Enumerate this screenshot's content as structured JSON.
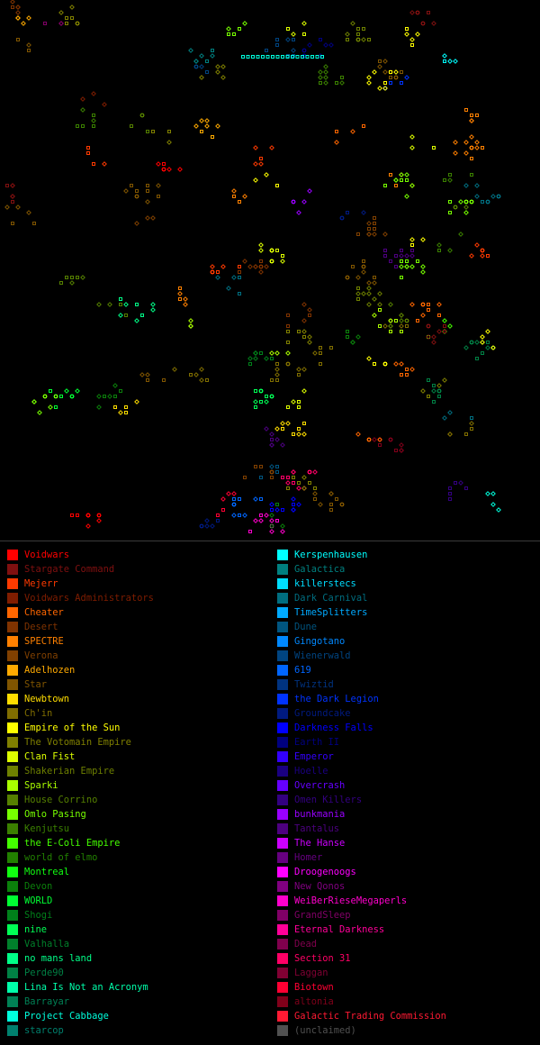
{
  "map": {
    "background": "#000000",
    "seed": 73
  },
  "legend": {
    "left": [
      {
        "name": "Voidwars",
        "color": "#ff0000",
        "active": true
      },
      {
        "name": "Stargate Command",
        "color": "#801010",
        "active": false
      },
      {
        "name": "Mejerr",
        "color": "#ff3a00",
        "active": true
      },
      {
        "name": "Voidwars Administrators",
        "color": "#801d00",
        "active": false
      },
      {
        "name": "Cheater",
        "color": "#ff6600",
        "active": true
      },
      {
        "name": "Desert",
        "color": "#803300",
        "active": false
      },
      {
        "name": "SPECTRE",
        "color": "#ff8000",
        "active": true
      },
      {
        "name": "Verona",
        "color": "#804000",
        "active": false
      },
      {
        "name": "Adelhozen",
        "color": "#ffaa00",
        "active": true
      },
      {
        "name": "Star",
        "color": "#805500",
        "active": false
      },
      {
        "name": "Newbtown",
        "color": "#ffdd00",
        "active": true
      },
      {
        "name": "Ch'in",
        "color": "#806e00",
        "active": false
      },
      {
        "name": "Empire of the Sun",
        "color": "#ffff00",
        "active": true
      },
      {
        "name": "The Votomain Empire",
        "color": "#808000",
        "active": false
      },
      {
        "name": "Clan Fist",
        "color": "#ddff00",
        "active": true
      },
      {
        "name": "Shakerian Empire",
        "color": "#6e8000",
        "active": false
      },
      {
        "name": "Sparki",
        "color": "#aaff00",
        "active": true
      },
      {
        "name": "House Corrino",
        "color": "#558000",
        "active": false
      },
      {
        "name": "Omlo Pasing",
        "color": "#77ff00",
        "active": true
      },
      {
        "name": "Kenjutsu",
        "color": "#3b8000",
        "active": false
      },
      {
        "name": "the E-Coli Empire",
        "color": "#44ff00",
        "active": true
      },
      {
        "name": "world of elmo",
        "color": "#228000",
        "active": false
      },
      {
        "name": "Montreal",
        "color": "#11ff11",
        "active": true
      },
      {
        "name": "Devon",
        "color": "#0b800b",
        "active": false
      },
      {
        "name": "WORLD",
        "color": "#00ff33",
        "active": true
      },
      {
        "name": "Shogi",
        "color": "#00801a",
        "active": false
      },
      {
        "name": "nine",
        "color": "#00ff55",
        "active": true
      },
      {
        "name": "Valhalla",
        "color": "#00802b",
        "active": false
      },
      {
        "name": "no mans land",
        "color": "#00ff88",
        "active": true
      },
      {
        "name": "Perde90",
        "color": "#008044",
        "active": false
      },
      {
        "name": "Lina Is Not an Acronym",
        "color": "#00ffaa",
        "active": true
      },
      {
        "name": "Barrayar",
        "color": "#008055",
        "active": false
      },
      {
        "name": "Project Cabbage",
        "color": "#00ffdd",
        "active": true
      },
      {
        "name": "starcop",
        "color": "#00806e",
        "active": false
      }
    ],
    "right": [
      {
        "name": "Kerspenhausen",
        "color": "#00ffff",
        "active": true
      },
      {
        "name": "Galactica",
        "color": "#008080",
        "active": false
      },
      {
        "name": "killerstecs",
        "color": "#00ddff",
        "active": true
      },
      {
        "name": "Dark Carnival",
        "color": "#006e80",
        "active": false
      },
      {
        "name": "TimeSplitters",
        "color": "#00aaff",
        "active": true
      },
      {
        "name": "Dune",
        "color": "#005580",
        "active": false
      },
      {
        "name": "Gingotano",
        "color": "#0088ff",
        "active": true
      },
      {
        "name": "Wienerwald",
        "color": "#004480",
        "active": false
      },
      {
        "name": "619",
        "color": "#0066ff",
        "active": true
      },
      {
        "name": "Twiztid",
        "color": "#003380",
        "active": false
      },
      {
        "name": "the Dark Legion",
        "color": "#0033ff",
        "active": true
      },
      {
        "name": "Groundcake",
        "color": "#001a80",
        "active": false
      },
      {
        "name": "Darkness Falls",
        "color": "#0000ff",
        "active": true
      },
      {
        "name": "Earth II",
        "color": "#000080",
        "active": false
      },
      {
        "name": "Emperor",
        "color": "#3300ff",
        "active": true
      },
      {
        "name": "Hoelle",
        "color": "#1a0080",
        "active": false
      },
      {
        "name": "Overcrash",
        "color": "#6600ff",
        "active": true
      },
      {
        "name": "Omen Killers",
        "color": "#330080",
        "active": false
      },
      {
        "name": "bunkmania",
        "color": "#9900ff",
        "active": true
      },
      {
        "name": "Tantalus",
        "color": "#4d0080",
        "active": false
      },
      {
        "name": "The Hanse",
        "color": "#cc00ff",
        "active": true
      },
      {
        "name": "Homer",
        "color": "#660080",
        "active": false
      },
      {
        "name": "Droogenoogs",
        "color": "#ff00ff",
        "active": true
      },
      {
        "name": "New Qonos",
        "color": "#800080",
        "active": false
      },
      {
        "name": "WeiBerRieseMegaperls",
        "color": "#ff00cc",
        "active": true
      },
      {
        "name": "GrandSleep",
        "color": "#800066",
        "active": false
      },
      {
        "name": "Eternal Darkness",
        "color": "#ff0099",
        "active": true
      },
      {
        "name": "Dead",
        "color": "#80004d",
        "active": false
      },
      {
        "name": "Section 31",
        "color": "#ff0066",
        "active": true
      },
      {
        "name": "Laggan",
        "color": "#800033",
        "active": false
      },
      {
        "name": "Biotown",
        "color": "#ff0033",
        "active": true
      },
      {
        "name": "altonia",
        "color": "#80001a",
        "active": false
      },
      {
        "name": "Galactic Trading Commission",
        "color": "#ff1a33",
        "active": true
      },
      {
        "name": "(unclaimed)",
        "color": "#505050",
        "active": false
      }
    ]
  }
}
